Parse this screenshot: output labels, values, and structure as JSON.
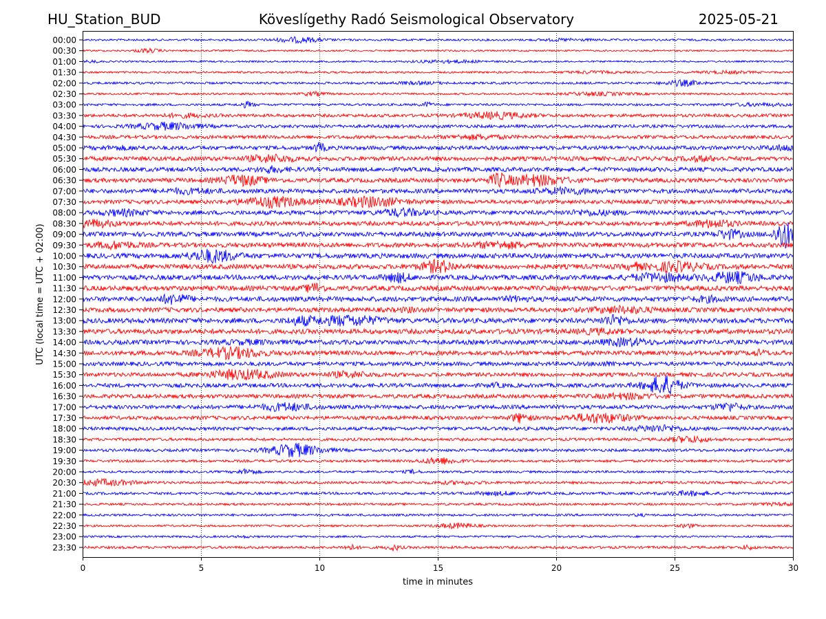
{
  "header": {
    "station": "HU_Station_BUD",
    "observatory": "Köveslígethy Radó Seismological Observatory",
    "date": "2025-05-21"
  },
  "chart_data": {
    "type": "line",
    "title": "Köveslígethy Radó Seismological Observatory",
    "xlabel": "time in minutes",
    "ylabel": "UTC (local time = UTC + 02:00)",
    "xlim": [
      0,
      30
    ],
    "xticks": [
      "0",
      "5",
      "10",
      "15",
      "20",
      "25",
      "30"
    ],
    "vertical_grid": "dotted at 5-minute ticks",
    "trace_colors": [
      "#0000ff",
      "#ff0000"
    ],
    "rows": [
      {
        "label": "00:00",
        "amp": 0.35
      },
      {
        "label": "00:30",
        "amp": 0.3
      },
      {
        "label": "01:00",
        "amp": 0.3
      },
      {
        "label": "01:30",
        "amp": 0.35
      },
      {
        "label": "02:00",
        "amp": 0.4
      },
      {
        "label": "02:30",
        "amp": 0.35
      },
      {
        "label": "03:00",
        "amp": 0.4
      },
      {
        "label": "03:30",
        "amp": 0.55
      },
      {
        "label": "04:00",
        "amp": 0.55
      },
      {
        "label": "04:30",
        "amp": 0.6
      },
      {
        "label": "05:00",
        "amp": 0.7
      },
      {
        "label": "05:30",
        "amp": 0.75
      },
      {
        "label": "06:00",
        "amp": 0.75
      },
      {
        "label": "06:30",
        "amp": 0.75
      },
      {
        "label": "07:00",
        "amp": 0.75
      },
      {
        "label": "07:30",
        "amp": 0.7
      },
      {
        "label": "08:00",
        "amp": 0.75
      },
      {
        "label": "08:30",
        "amp": 0.75
      },
      {
        "label": "09:00",
        "amp": 0.8
      },
      {
        "label": "09:30",
        "amp": 0.8
      },
      {
        "label": "10:00",
        "amp": 0.85
      },
      {
        "label": "10:30",
        "amp": 0.85
      },
      {
        "label": "11:00",
        "amp": 0.85
      },
      {
        "label": "11:30",
        "amp": 0.85
      },
      {
        "label": "12:00",
        "amp": 0.85
      },
      {
        "label": "12:30",
        "amp": 0.8
      },
      {
        "label": "13:00",
        "amp": 0.85
      },
      {
        "label": "13:30",
        "amp": 0.85
      },
      {
        "label": "14:00",
        "amp": 0.8
      },
      {
        "label": "14:30",
        "amp": 0.8
      },
      {
        "label": "15:00",
        "amp": 0.7
      },
      {
        "label": "15:30",
        "amp": 0.7
      },
      {
        "label": "16:00",
        "amp": 0.7
      },
      {
        "label": "16:30",
        "amp": 0.7
      },
      {
        "label": "17:00",
        "amp": 0.7
      },
      {
        "label": "17:30",
        "amp": 0.65
      },
      {
        "label": "18:00",
        "amp": 0.6
      },
      {
        "label": "18:30",
        "amp": 0.5
      },
      {
        "label": "19:00",
        "amp": 0.5
      },
      {
        "label": "19:30",
        "amp": 0.45
      },
      {
        "label": "20:00",
        "amp": 0.4
      },
      {
        "label": "20:30",
        "amp": 0.45
      },
      {
        "label": "21:00",
        "amp": 0.45
      },
      {
        "label": "21:30",
        "amp": 0.4
      },
      {
        "label": "22:00",
        "amp": 0.4
      },
      {
        "label": "22:30",
        "amp": 0.35
      },
      {
        "label": "23:00",
        "amp": 0.35
      },
      {
        "label": "23:30",
        "amp": 0.45
      }
    ]
  }
}
